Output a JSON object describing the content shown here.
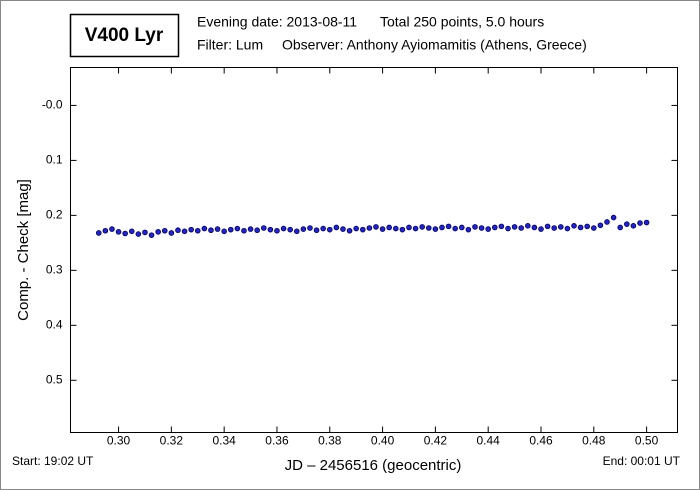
{
  "chart_data": {
    "type": "scatter",
    "title": "V400 Lyr",
    "info": [
      "Evening date: 2013-08-11",
      "Total 250 points, 5.0 hours",
      "Filter: Lum",
      "Observer: Anthony Ayiomamitis (Athens, Greece)"
    ],
    "y_label": "Comp. - Check [mag]",
    "x_label": "JD – 2456516  (geocentric)",
    "start_label": "Start: 19:02 UT",
    "end_label": "End: 00:01 UT",
    "color": "#2020e0",
    "edge_color": "#000050",
    "xlim": [
      0.2818,
      0.5117
    ],
    "ylim": [
      0.595,
      -0.069
    ],
    "xticks": [
      {
        "value": 0.3,
        "label": "0.30"
      },
      {
        "value": 0.32,
        "label": "0.32"
      },
      {
        "value": 0.34,
        "label": "0.34"
      },
      {
        "value": 0.36,
        "label": "0.36"
      },
      {
        "value": 0.38,
        "label": "0.38"
      },
      {
        "value": 0.4,
        "label": "0.40"
      },
      {
        "value": 0.42,
        "label": "0.42"
      },
      {
        "value": 0.44,
        "label": "0.44"
      },
      {
        "value": 0.46,
        "label": "0.46"
      },
      {
        "value": 0.48,
        "label": "0.48"
      },
      {
        "value": 0.5,
        "label": "0.50"
      }
    ],
    "yticks": [
      {
        "value": 0,
        "label": "-0.0"
      },
      0.1,
      0.2,
      0.3,
      0.4,
      0.5
    ],
    "x": [
      0.2925,
      0.295,
      0.2975,
      0.3,
      0.3025,
      0.305,
      0.3075,
      0.31,
      0.3125,
      0.315,
      0.3175,
      0.32,
      0.3225,
      0.325,
      0.3275,
      0.33,
      0.3325,
      0.335,
      0.3375,
      0.34,
      0.3425,
      0.345,
      0.3475,
      0.35,
      0.3525,
      0.355,
      0.3575,
      0.36,
      0.3625,
      0.365,
      0.3675,
      0.37,
      0.3725,
      0.375,
      0.3775,
      0.38,
      0.3825,
      0.385,
      0.3875,
      0.39,
      0.3925,
      0.395,
      0.3975,
      0.4,
      0.4025,
      0.405,
      0.4075,
      0.41,
      0.4125,
      0.415,
      0.4175,
      0.42,
      0.4225,
      0.425,
      0.4275,
      0.43,
      0.4325,
      0.435,
      0.4375,
      0.44,
      0.4425,
      0.445,
      0.4475,
      0.45,
      0.4525,
      0.455,
      0.4575,
      0.46,
      0.4625,
      0.465,
      0.4675,
      0.47,
      0.4725,
      0.475,
      0.4775,
      0.48,
      0.4825,
      0.485,
      0.4875,
      0.49,
      0.4925,
      0.495,
      0.4975,
      0.5
    ],
    "values": [
      0.232,
      0.228,
      0.225,
      0.23,
      0.233,
      0.229,
      0.234,
      0.231,
      0.236,
      0.23,
      0.228,
      0.232,
      0.227,
      0.229,
      0.226,
      0.228,
      0.224,
      0.227,
      0.225,
      0.229,
      0.226,
      0.224,
      0.228,
      0.225,
      0.227,
      0.223,
      0.226,
      0.228,
      0.224,
      0.226,
      0.229,
      0.225,
      0.223,
      0.227,
      0.224,
      0.226,
      0.222,
      0.225,
      0.228,
      0.224,
      0.226,
      0.223,
      0.221,
      0.225,
      0.222,
      0.224,
      0.226,
      0.222,
      0.224,
      0.221,
      0.223,
      0.225,
      0.222,
      0.22,
      0.224,
      0.222,
      0.226,
      0.221,
      0.223,
      0.225,
      0.222,
      0.22,
      0.224,
      0.221,
      0.223,
      0.219,
      0.222,
      0.225,
      0.22,
      0.223,
      0.221,
      0.224,
      0.219,
      0.222,
      0.22,
      0.223,
      0.218,
      0.212,
      0.204,
      0.222,
      0.216,
      0.219,
      0.214,
      0.213
    ]
  }
}
